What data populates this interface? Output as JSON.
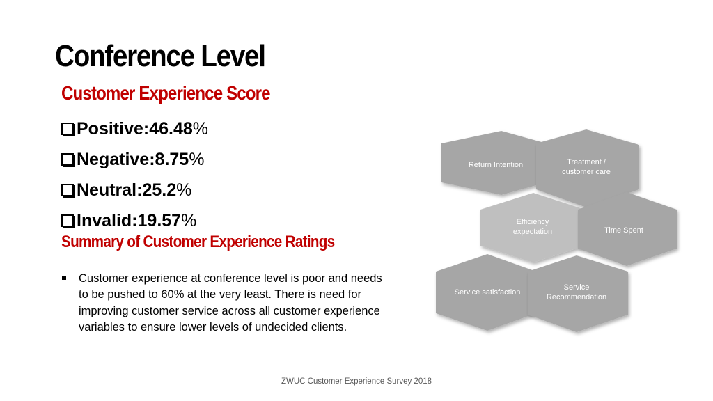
{
  "slide": {
    "title": "Conference Level",
    "score_heading": "Customer Experience Score",
    "scores": [
      {
        "label": "Positive: ",
        "value": "46.48",
        "unit": "%"
      },
      {
        "label": "Negative: ",
        "value": "8.75",
        "unit": "%"
      },
      {
        "label": "Neutral: ",
        "value": "25.2",
        "unit": "%"
      },
      {
        "label": "Invalid: ",
        "value": "19.57",
        "unit": "%"
      }
    ],
    "summary_heading": "Summary of Customer Experience Ratings",
    "summary_text": "Customer experience at conference level is poor and needs to be pushed to 60% at the very least. There is need for improving customer service across all customer experience variables to ensure lower levels of undecided clients.",
    "footer": "ZWUC Customer Experience Survey 2018"
  },
  "diagram": {
    "hexagons": [
      {
        "name": "hex-return-intention",
        "lines": [
          "Return Intention"
        ],
        "color": "#a6a6a6"
      },
      {
        "name": "hex-treatment-customer-care",
        "lines": [
          "Treatment /",
          "customer care"
        ],
        "color": "#a6a6a6"
      },
      {
        "name": "hex-efficiency-expectation",
        "lines": [
          "Efficiency",
          "expectation"
        ],
        "color": "#bfbfbf"
      },
      {
        "name": "hex-time-spent",
        "lines": [
          "Time Spent"
        ],
        "color": "#a6a6a6"
      },
      {
        "name": "hex-service-satisfaction",
        "lines": [
          "Service satisfaction"
        ],
        "color": "#a6a6a6"
      },
      {
        "name": "hex-service-recommendation",
        "lines": [
          "Service",
          "Recommendation"
        ],
        "color": "#a6a6a6"
      }
    ]
  }
}
